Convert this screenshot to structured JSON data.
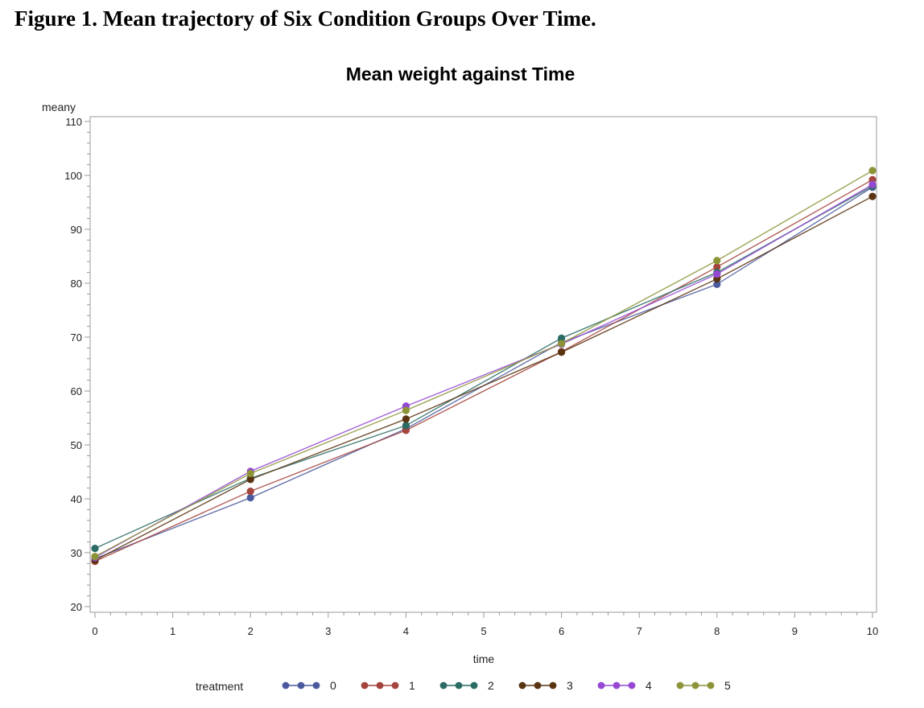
{
  "caption": "Figure 1. Mean trajectory of Six Condition Groups Over Time.",
  "chart_data": {
    "type": "line",
    "title": "Mean weight against Time",
    "xlabel": "time",
    "ylabel": "meany",
    "xlim": [
      0,
      10
    ],
    "ylim": [
      20,
      110
    ],
    "x_ticks": [
      0,
      1,
      2,
      3,
      4,
      5,
      6,
      7,
      8,
      9,
      10
    ],
    "y_ticks": [
      20,
      30,
      40,
      50,
      60,
      70,
      80,
      90,
      100,
      110
    ],
    "grid": false,
    "legend_title": "treatment",
    "legend_position": "bottom",
    "x": [
      0,
      2,
      4,
      6,
      8,
      10
    ],
    "series": [
      {
        "name": "0",
        "color": "#4b5a9e",
        "values": [
          28.9,
          40.2,
          53.0,
          69.0,
          79.8,
          97.8
        ]
      },
      {
        "name": "1",
        "color": "#a5443d",
        "values": [
          28.4,
          41.4,
          52.7,
          67.3,
          83.0,
          99.2
        ]
      },
      {
        "name": "2",
        "color": "#2a6b64",
        "values": [
          30.8,
          43.8,
          53.6,
          69.8,
          82.0,
          98.0
        ]
      },
      {
        "name": "3",
        "color": "#5a3311",
        "values": [
          28.6,
          43.6,
          54.8,
          67.2,
          80.8,
          96.1
        ]
      },
      {
        "name": "4",
        "color": "#9448d4",
        "values": [
          29.1,
          45.1,
          57.2,
          68.7,
          81.7,
          98.3
        ]
      },
      {
        "name": "5",
        "color": "#8d9438",
        "values": [
          29.3,
          44.7,
          56.4,
          68.8,
          84.2,
          100.9
        ]
      }
    ]
  }
}
